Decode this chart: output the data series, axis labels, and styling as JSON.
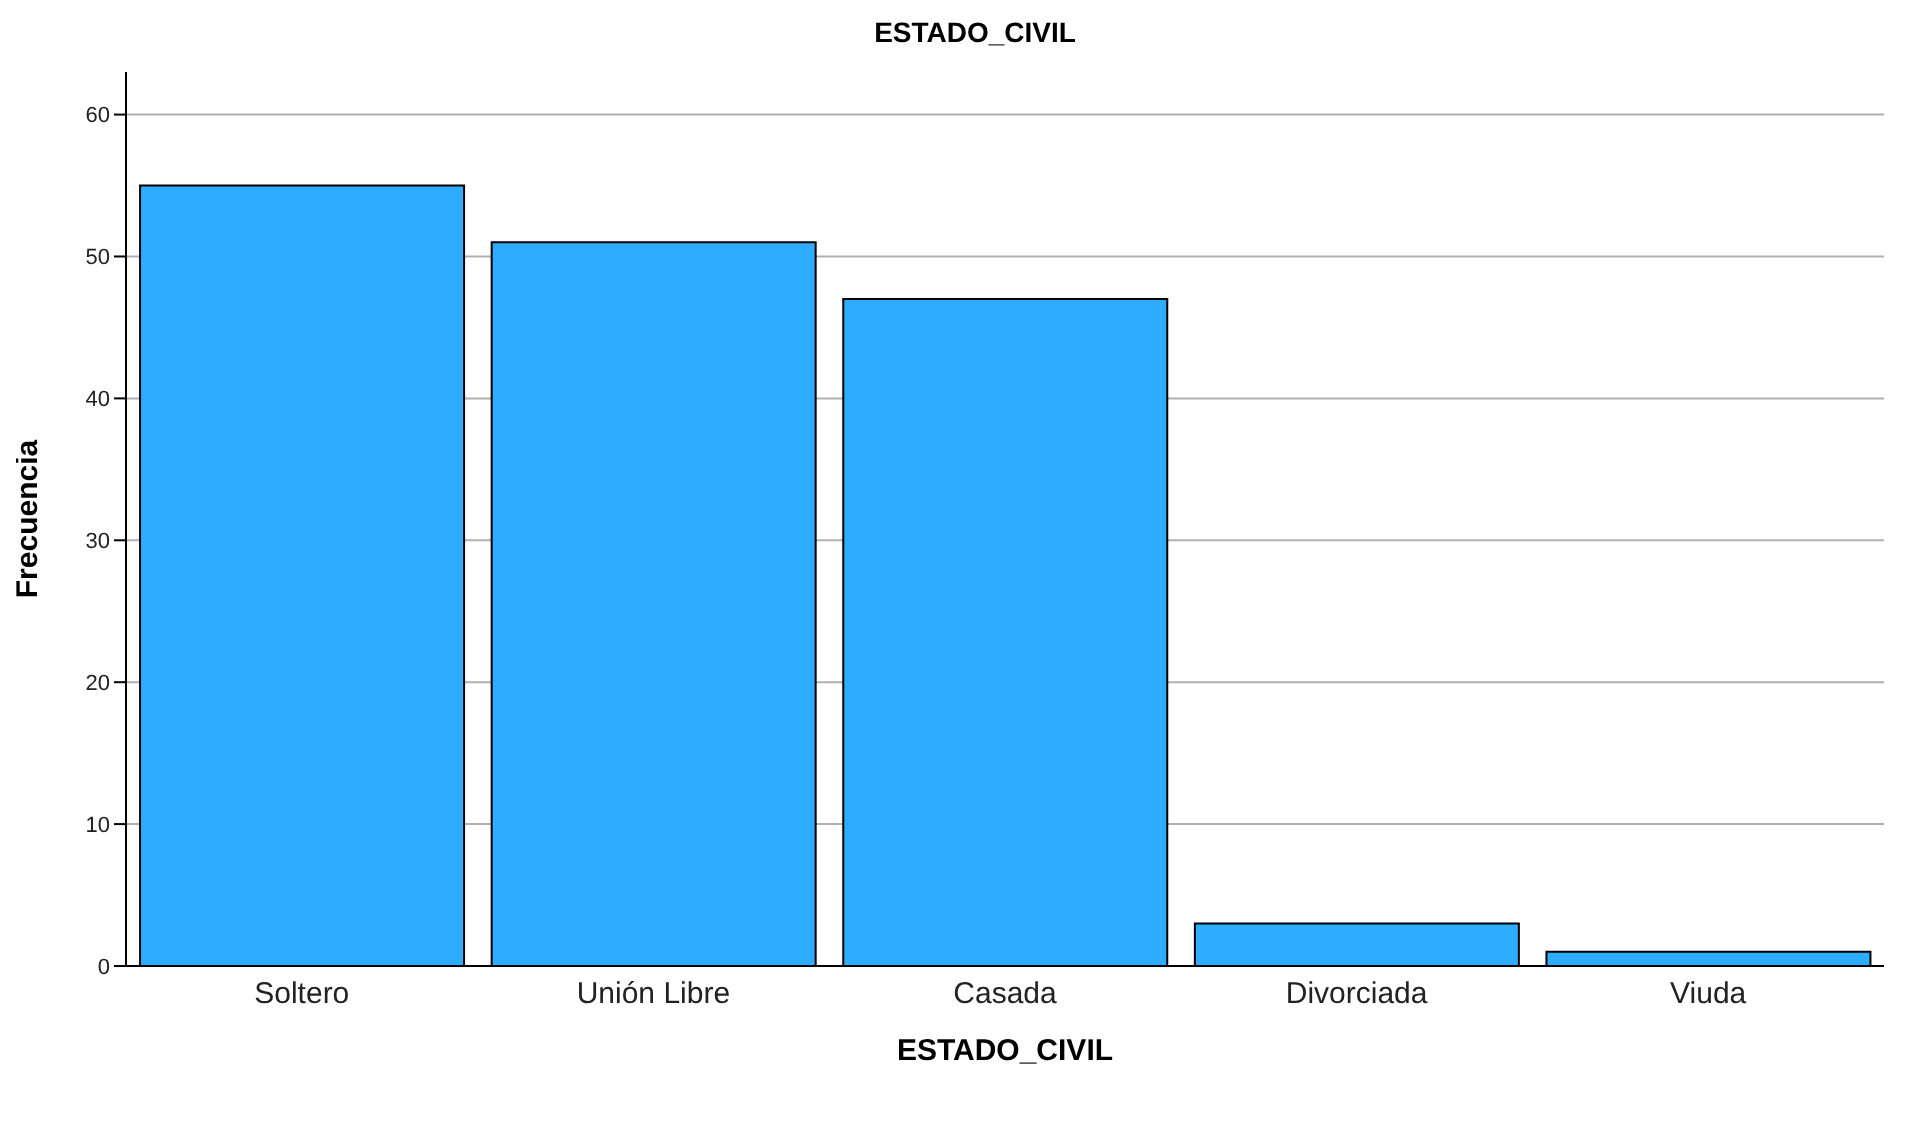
{
  "chart_data": {
    "type": "bar",
    "title": "ESTADO_CIVIL",
    "xlabel": "ESTADO_CIVIL",
    "ylabel": "Frecuencia",
    "categories": [
      "Soltero",
      "Unión Libre",
      "Casada",
      "Divorciada",
      "Viuda"
    ],
    "values": [
      55,
      51,
      47,
      3,
      1
    ],
    "color": "#2eacff",
    "ylim": [
      0,
      63
    ],
    "yticks": [
      0,
      10,
      20,
      30,
      40,
      50,
      60
    ],
    "grid": "y"
  }
}
